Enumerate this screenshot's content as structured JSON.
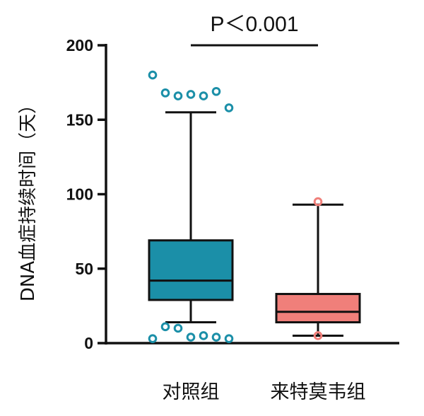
{
  "chart_data": {
    "type": "box",
    "ylabel": "DNA血症持续时间（天）",
    "ylim": [
      0,
      200
    ],
    "yticks": [
      0,
      50,
      100,
      150,
      200
    ],
    "categories": [
      "对照组",
      "来特莫韦组"
    ],
    "series": [
      {
        "category": "对照组",
        "color": "#1b8fa8",
        "whisker_low": 14,
        "q1": 29,
        "median": 42,
        "q3": 69,
        "whisker_high": 155,
        "outliers_high": [
          180,
          168,
          166,
          167,
          166,
          169,
          158
        ],
        "outliers_low": [
          3,
          11,
          10,
          4,
          5,
          4,
          3
        ]
      },
      {
        "category": "来特莫韦组",
        "color": "#f07f7a",
        "whisker_low": 5,
        "q1": 14,
        "median": 21,
        "q3": 33,
        "whisker_high": 93,
        "outliers_high": [
          95
        ],
        "outliers_low": [
          5
        ]
      }
    ],
    "annotation": {
      "text": "P＜0.001",
      "between": [
        "对照组",
        "来特莫韦组"
      ],
      "y": 200
    }
  }
}
